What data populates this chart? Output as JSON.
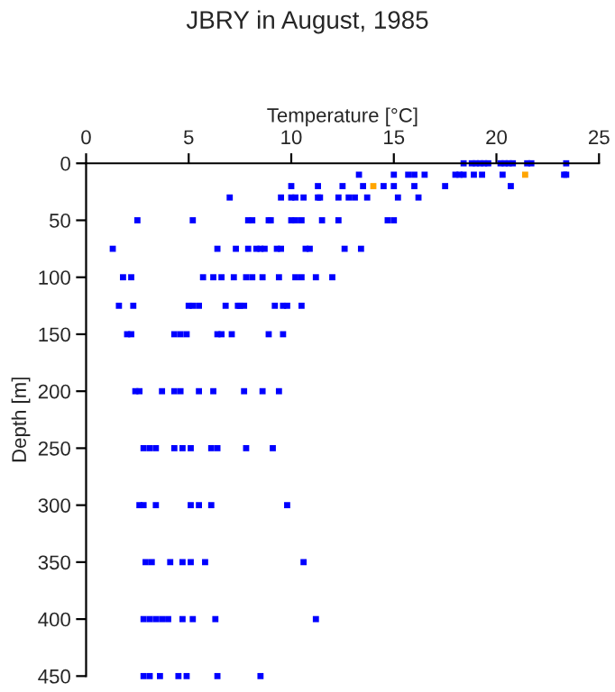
{
  "chart_data": {
    "type": "scatter",
    "title": "JBRY in August, 1985",
    "xlabel": "Temperature [°C]",
    "ylabel": "Depth [m]",
    "xlim": [
      0,
      25
    ],
    "xticks": [
      0,
      5,
      10,
      15,
      20,
      25
    ],
    "ylim": [
      450,
      0
    ],
    "yticks": [
      0,
      50,
      100,
      150,
      200,
      250,
      300,
      350,
      400,
      450
    ],
    "marker": "square",
    "series": [
      {
        "color": "#0000ff",
        "x": [
          18.4,
          18.8,
          19.0,
          19.2,
          19.4,
          19.6,
          20.2,
          20.4,
          20.6,
          20.8,
          21.5,
          21.7,
          23.4,
          13.3,
          15.0,
          15.7,
          16.0,
          16.5,
          18.0,
          18.2,
          18.4,
          18.9,
          19.3,
          20.3,
          23.3,
          23.4,
          10.0,
          11.3,
          12.5,
          13.5,
          14.5,
          15.0,
          16.0,
          17.5,
          20.7,
          7.0,
          9.5,
          10.0,
          10.2,
          10.6,
          11.3,
          11.4,
          12.3,
          12.8,
          13.1,
          13.7,
          15.2,
          16.2,
          2.5,
          5.2,
          7.9,
          8.1,
          8.9,
          9.0,
          10.0,
          10.2,
          10.5,
          11.5,
          12.3,
          14.7,
          15.0,
          1.3,
          6.4,
          7.3,
          7.9,
          8.3,
          8.5,
          8.7,
          9.3,
          9.5,
          10.7,
          10.9,
          12.6,
          13.4,
          1.8,
          2.2,
          5.7,
          6.2,
          6.6,
          7.2,
          7.8,
          8.1,
          8.6,
          9.4,
          10.2,
          10.5,
          11.2,
          12.0,
          1.6,
          2.3,
          5.0,
          5.2,
          5.5,
          6.8,
          7.4,
          7.5,
          7.7,
          9.2,
          9.6,
          9.8,
          10.5,
          2.0,
          2.2,
          4.3,
          4.6,
          4.9,
          6.4,
          6.6,
          7.1,
          8.9,
          9.6,
          2.4,
          2.6,
          3.7,
          4.3,
          4.6,
          5.5,
          6.2,
          7.7,
          8.6,
          9.4,
          2.8,
          3.1,
          3.4,
          4.3,
          4.7,
          5.1,
          6.1,
          6.4,
          7.8,
          9.1,
          2.6,
          2.8,
          3.4,
          5.1,
          5.5,
          6.1,
          9.8,
          2.9,
          3.2,
          4.1,
          4.7,
          5.1,
          5.8,
          10.6,
          2.8,
          3.1,
          3.4,
          3.7,
          4.0,
          4.7,
          5.2,
          6.3,
          11.2,
          2.8,
          3.1,
          3.6,
          4.5,
          4.9,
          6.4,
          8.5
        ],
        "values": [
          0,
          0,
          0,
          0,
          0,
          0,
          0,
          0,
          0,
          0,
          0,
          0,
          0,
          10,
          10,
          10,
          10,
          10,
          10,
          10,
          10,
          10,
          10,
          10,
          10,
          10,
          20,
          20,
          20,
          20,
          20,
          20,
          20,
          20,
          20,
          30,
          30,
          30,
          30,
          30,
          30,
          30,
          30,
          30,
          30,
          30,
          30,
          30,
          50,
          50,
          50,
          50,
          50,
          50,
          50,
          50,
          50,
          50,
          50,
          50,
          50,
          75,
          75,
          75,
          75,
          75,
          75,
          75,
          75,
          75,
          75,
          75,
          75,
          75,
          100,
          100,
          100,
          100,
          100,
          100,
          100,
          100,
          100,
          100,
          100,
          100,
          100,
          100,
          125,
          125,
          125,
          125,
          125,
          125,
          125,
          125,
          125,
          125,
          125,
          125,
          125,
          150,
          150,
          150,
          150,
          150,
          150,
          150,
          150,
          150,
          150,
          200,
          200,
          200,
          200,
          200,
          200,
          200,
          200,
          200,
          200,
          250,
          250,
          250,
          250,
          250,
          250,
          250,
          250,
          250,
          250,
          300,
          300,
          300,
          300,
          300,
          300,
          300,
          350,
          350,
          350,
          350,
          350,
          350,
          350,
          400,
          400,
          400,
          400,
          400,
          400,
          400,
          400,
          400,
          450,
          450,
          450,
          450,
          450,
          450,
          450
        ]
      },
      {
        "color": "#ffa500",
        "x": [
          21.4,
          14.0
        ],
        "values": [
          10,
          20
        ]
      }
    ]
  }
}
